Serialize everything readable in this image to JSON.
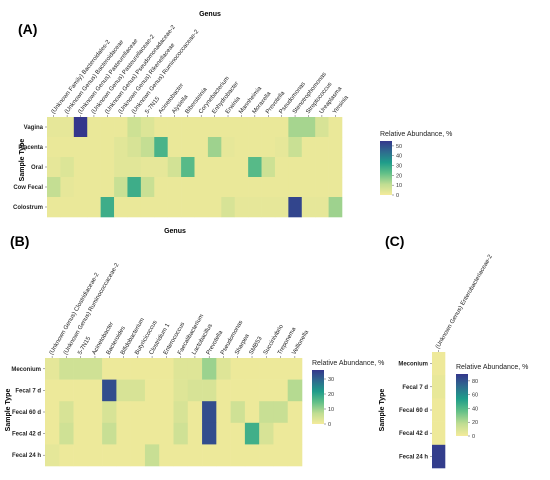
{
  "chart_data": [
    {
      "type": "heatmap",
      "panel": "(A)",
      "title": "Genus",
      "ylabel": "Sample Type",
      "legend_title": "Relative Abundance, %",
      "legend_ticks": [
        0,
        10,
        20,
        30,
        40,
        50
      ],
      "zlim": [
        0,
        55
      ],
      "categories": [
        "(Unknown Family) Bacteroidales-2",
        "(Unknown Genus) Bacteroidaceae",
        "(Unknown Genus) Pasteurellaceae",
        "(Unknown Genus) Pasteurellaceae-2",
        "(Unknown Genus) Pseudomonadaceae-2",
        "(Unknown Genus) Rikenellaceae",
        "(Unknown Genus) Ruminococcaceae-2",
        "5-7N15",
        "Acinetobacter",
        "Alysiella",
        "Bibersteinia",
        "Corynebacterium",
        "Enhydrobacter",
        "Erwinia",
        "Mannheimia",
        "Moraxella",
        "Prevotella",
        "Pseudomonas",
        "Stenotrophomonas",
        "Streptococcus",
        "Ureaplasma",
        "Yersinia"
      ],
      "rows": [
        "Vagina",
        "Placenta",
        "Oral",
        "Cow Fecal",
        "Colostrum"
      ],
      "values": [
        [
          3,
          3,
          55,
          2,
          2,
          2,
          8,
          5,
          2,
          2,
          2,
          2,
          2,
          2,
          2,
          2,
          2,
          2,
          14,
          14,
          6,
          2
        ],
        [
          2,
          2,
          2,
          2,
          2,
          4,
          6,
          10,
          26,
          2,
          2,
          2,
          15,
          3,
          2,
          2,
          2,
          3,
          9,
          2,
          2,
          2
        ],
        [
          3,
          5,
          2,
          2,
          2,
          4,
          4,
          3,
          3,
          7,
          24,
          2,
          2,
          2,
          2,
          24,
          8,
          2,
          2,
          2,
          2,
          2
        ],
        [
          10,
          3,
          2,
          2,
          2,
          9,
          28,
          9,
          2,
          2,
          2,
          2,
          2,
          2,
          2,
          2,
          2,
          2,
          2,
          2,
          2,
          2
        ],
        [
          2,
          2,
          2,
          2,
          28,
          2,
          2,
          2,
          2,
          2,
          2,
          2,
          2,
          6,
          3,
          3,
          3,
          3,
          52,
          3,
          3,
          15
        ]
      ]
    },
    {
      "type": "heatmap",
      "panel": "(B)",
      "title": "Genus",
      "ylabel": "Sample Type",
      "legend_title": "Relative Abundance, %",
      "legend_ticks": [
        0,
        10,
        20,
        30
      ],
      "zlim": [
        0,
        36
      ],
      "categories": [
        "(Unknown Genus) Clostridiaceae-2",
        "(Unknown Genus) Ruminococcaceae-2",
        "5-7N15",
        "Acinetobacter",
        "Bacteroides",
        "Bifidobacterium",
        "Butyricicoccus",
        "Clostridium 1",
        "Enterococcus",
        "Faecalibacterium",
        "Lactobacillus",
        "Prevotella",
        "Pseudomonas",
        "Sharpea",
        "SMB53",
        "Succinivibrio",
        "Treponema",
        "Veillonella"
      ],
      "rows": [
        "Meconium",
        "Fecal 7 d",
        "Fecal 60 d",
        "Fecal 42 d",
        "Fecal 24 h"
      ],
      "values": [
        [
          2,
          5,
          5,
          5,
          1,
          1,
          1,
          1,
          1,
          3,
          3,
          10,
          3,
          1,
          1,
          1,
          1,
          1
        ],
        [
          1,
          1,
          1,
          1,
          33,
          4,
          4,
          1,
          1,
          3,
          4,
          4,
          1,
          1,
          1,
          1,
          1,
          8
        ],
        [
          1,
          4,
          1,
          1,
          4,
          1,
          1,
          1,
          1,
          4,
          1,
          33,
          1,
          5,
          1,
          6,
          6,
          1
        ],
        [
          1,
          5,
          1,
          1,
          6,
          1,
          1,
          1,
          1,
          5,
          1,
          33,
          1,
          1,
          18,
          4,
          1,
          1
        ],
        [
          2,
          1,
          1,
          1,
          1,
          1,
          1,
          6,
          1,
          1,
          1,
          1,
          1,
          1,
          1,
          1,
          1,
          1
        ]
      ]
    },
    {
      "type": "heatmap",
      "panel": "(C)",
      "ylabel": "Sample Type",
      "legend_title": "Relative Abundance, %",
      "legend_ticks": [
        0,
        20,
        40,
        60,
        80
      ],
      "zlim": [
        0,
        90
      ],
      "categories": [
        "(Unknown Genus) Enterobacteriaceae-2"
      ],
      "rows": [
        "Meconium",
        "Fecal 7 d",
        "Fecal 60 d",
        "Fecal 42 d",
        "Fecal 24 h"
      ],
      "values": [
        [
          2
        ],
        [
          4
        ],
        [
          2
        ],
        [
          2
        ],
        [
          88
        ]
      ]
    }
  ]
}
